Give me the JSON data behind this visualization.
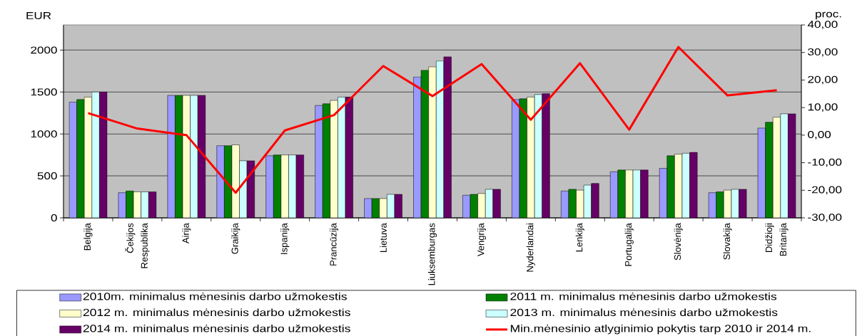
{
  "chart_data": {
    "type": "bar",
    "categories": [
      "Belgija",
      "Čekijos Respublika",
      "Airija",
      "Graikija",
      "Ispanija",
      "Prancūzija",
      "Lietuva",
      "Liuksemburgas",
      "Vengrija",
      "Nyderlandai",
      "Lenkija",
      "Portugalija",
      "Slovėnija",
      "Slovakija",
      "Didžioji Britanija"
    ],
    "series": [
      {
        "name": "2010m. minimalus mėnesinis darbo užmokestis",
        "color": "#9999ff",
        "values": [
          1380,
          300,
          1460,
          860,
          740,
          1340,
          230,
          1680,
          270,
          1410,
          320,
          550,
          590,
          300,
          1070
        ]
      },
      {
        "name": "2011 m. minimalus mėnesinis darbo užmokestis",
        "color": "#008000",
        "values": [
          1410,
          320,
          1460,
          860,
          750,
          1360,
          230,
          1760,
          280,
          1420,
          340,
          570,
          740,
          310,
          1140
        ]
      },
      {
        "name": "2012 m. minimalus mėnesinis darbo užmokestis",
        "color": "#ffffcc",
        "values": [
          1440,
          310,
          1460,
          870,
          750,
          1400,
          230,
          1800,
          290,
          1440,
          330,
          570,
          760,
          330,
          1200
        ]
      },
      {
        "name": "2013 m. minimalus mėnesinis darbo užmokestis",
        "color": "#ccffff",
        "values": [
          1500,
          310,
          1460,
          680,
          750,
          1440,
          280,
          1870,
          340,
          1470,
          390,
          570,
          770,
          340,
          1240
        ]
      },
      {
        "name": "2014 m. minimalus mėnesinis darbo užmokestis",
        "color": "#660066",
        "values": [
          1500,
          310,
          1460,
          680,
          750,
          1440,
          280,
          1920,
          340,
          1480,
          410,
          570,
          780,
          340,
          1240
        ]
      },
      {
        "name": "Min.mėnesinio atlyginimio pokytis tarp 2010 ir 2014 m.",
        "type": "line",
        "axis": "y2",
        "color": "#ff0000",
        "values": [
          8.0,
          2.4,
          0.0,
          -20.9,
          1.7,
          7.3,
          25.1,
          14.2,
          25.8,
          5.6,
          26.1,
          2.0,
          32.0,
          14.4,
          16.3
        ]
      }
    ],
    "ylabel": "EUR",
    "y2label": "proc.",
    "ylim": [
      0,
      2300
    ],
    "yticks": [
      0,
      500,
      1000,
      1500,
      2000
    ],
    "y2lim": [
      -30,
      40
    ],
    "y2ticks": [
      {
        "value": -30,
        "label": "-30,00"
      },
      {
        "value": -20,
        "label": "-20,00"
      },
      {
        "value": -10,
        "label": "-10,00"
      },
      {
        "value": 0,
        "label": "0,00"
      },
      {
        "value": 10,
        "label": "10,00"
      },
      {
        "value": 20,
        "label": "20,00"
      },
      {
        "value": 30,
        "label": "30,00"
      },
      {
        "value": 40,
        "label": "40,00"
      }
    ],
    "grid": "y",
    "legend": "bottom"
  }
}
